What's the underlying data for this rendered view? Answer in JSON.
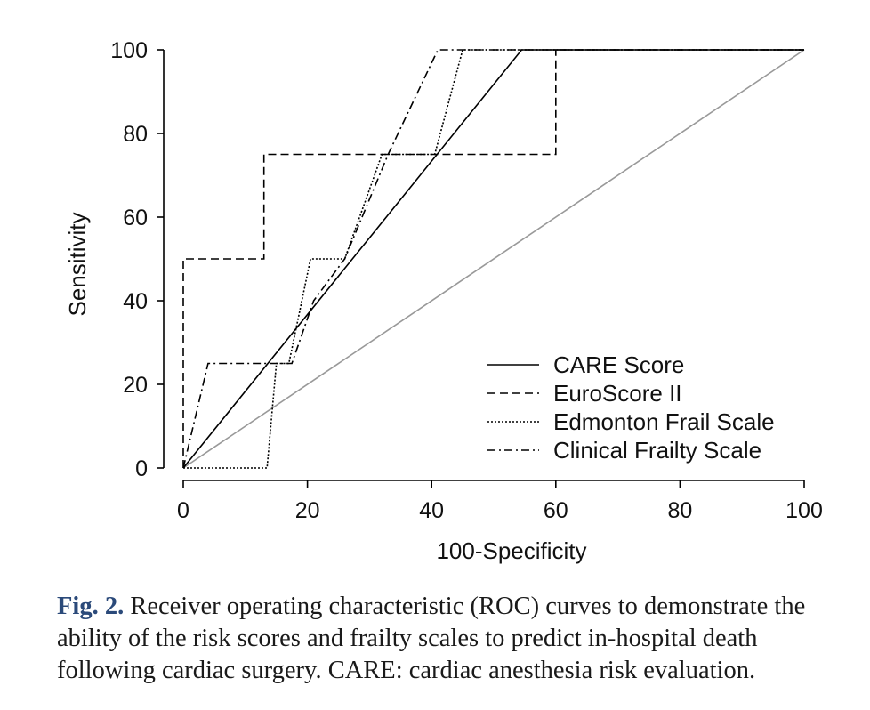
{
  "chart_data": {
    "type": "line",
    "title": "",
    "xlabel": "100-Specificity",
    "ylabel": "Sensitivity",
    "xlim": [
      0,
      100
    ],
    "ylim": [
      0,
      100
    ],
    "xticks": [
      0,
      20,
      40,
      60,
      80,
      100
    ],
    "yticks": [
      0,
      20,
      40,
      60,
      80,
      100
    ],
    "grid": false,
    "legend_position": "bottom-right",
    "series": [
      {
        "name": "CARE Score",
        "style": "solid",
        "color": "#000000",
        "x": [
          0,
          54.5,
          100
        ],
        "y": [
          0,
          100,
          100
        ]
      },
      {
        "name": "EuroScore II",
        "style": "dashed",
        "color": "#000000",
        "x": [
          0,
          0,
          13,
          13,
          60,
          60,
          100
        ],
        "y": [
          0,
          50,
          50,
          75,
          75,
          100,
          100
        ]
      },
      {
        "name": "Edmonton Frail Scale",
        "style": "dotted",
        "color": "#000000",
        "x": [
          0,
          13.5,
          15,
          17,
          20.5,
          26,
          32,
          40.5,
          45,
          100
        ],
        "y": [
          0,
          0,
          25,
          25,
          50,
          50,
          75,
          75,
          100,
          100
        ]
      },
      {
        "name": "Clinical Frailty Scale",
        "style": "dashdot",
        "color": "#000000",
        "x": [
          0,
          4,
          14,
          17.5,
          21,
          26,
          33,
          41,
          100
        ],
        "y": [
          0,
          25,
          25,
          25,
          40,
          50,
          75,
          100,
          100
        ]
      }
    ],
    "reference_line": {
      "name": "Reference",
      "color": "#999999",
      "x": [
        0,
        100
      ],
      "y": [
        0,
        100
      ]
    }
  },
  "caption": {
    "label": "Fig. 2.",
    "text": " Receiver operating characteristic (ROC) curves to demonstrate the ability of the risk scores and frailty scales to predict in-hospital death following cardiac surgery. CARE: cardiac anesthesia risk evaluation."
  }
}
